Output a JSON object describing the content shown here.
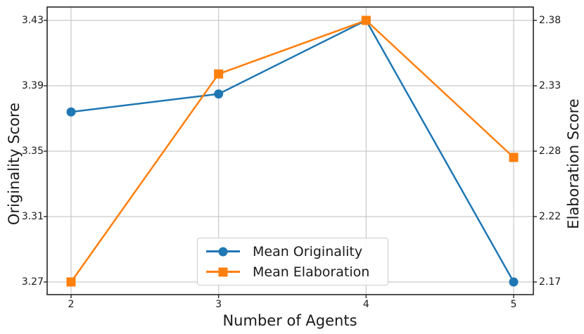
{
  "chart_data": {
    "type": "line",
    "title": "",
    "xlabel": "Number of Agents",
    "ylabel_left": "Originality Score",
    "ylabel_right": "Elaboration Score",
    "x": [
      2,
      3,
      4,
      5
    ],
    "xtick_labels": [
      "2",
      "3",
      "4",
      "5"
    ],
    "ytick_labels_left": [
      "3.27",
      "3.31",
      "3.35",
      "3.39",
      "3.43"
    ],
    "ytick_labels_right": [
      "2.17",
      "2.22",
      "2.28",
      "2.33",
      "2.38"
    ],
    "ylim_left": [
      3.27,
      3.43
    ],
    "ylim_right": [
      2.17,
      2.38
    ],
    "grid": true,
    "legend_position": "lower center",
    "series": [
      {
        "name": "Mean Originality",
        "axis": "left",
        "color": "#1f77b4",
        "marker": "circle",
        "values": [
          3.374,
          3.385,
          3.43,
          3.27
        ]
      },
      {
        "name": "Mean Elaboration",
        "axis": "right",
        "color": "#ff7f0e",
        "marker": "square",
        "values": [
          2.17,
          2.337,
          2.38,
          2.27
        ]
      }
    ],
    "colors": {
      "grid": "#c9c9c9",
      "spine": "#262626",
      "text": "#1a1a1a"
    }
  }
}
